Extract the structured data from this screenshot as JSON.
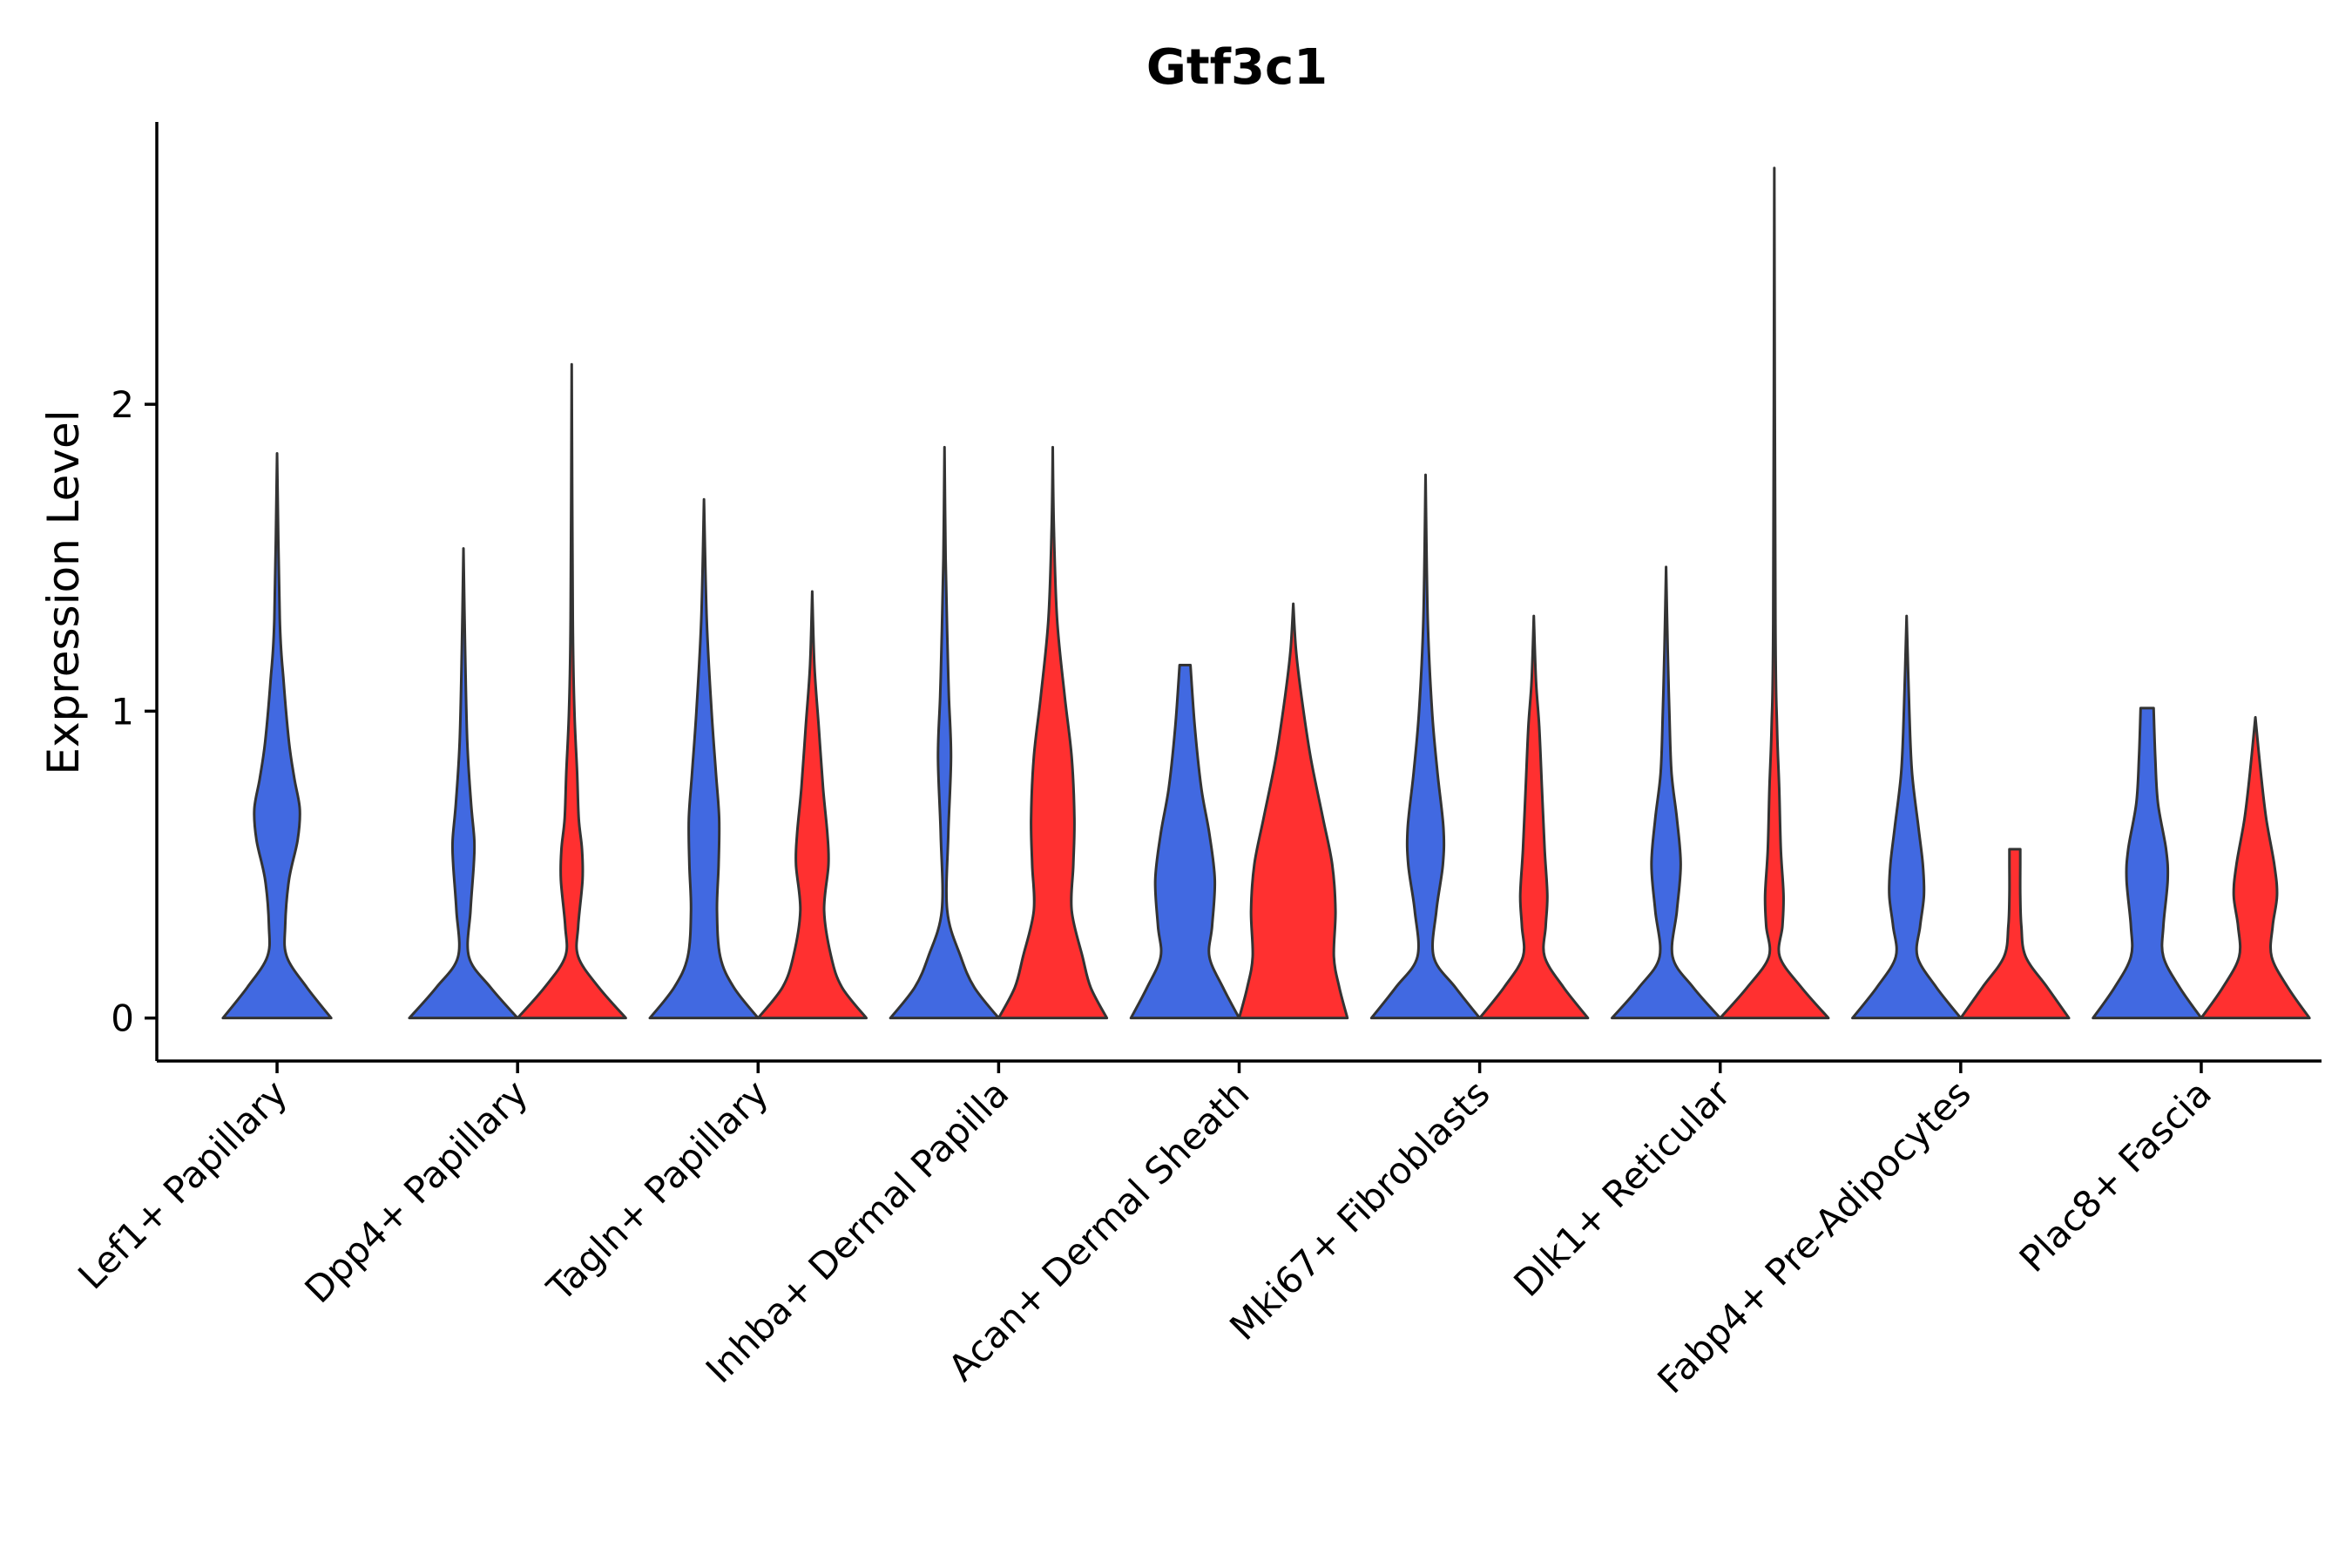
{
  "chart_data": {
    "type": "violin",
    "title": "Gtf3c1",
    "xlabel": "",
    "ylabel": "Expression Level",
    "ylim": [
      -0.14,
      2.92
    ],
    "yticks": [
      0,
      1,
      2
    ],
    "grid": false,
    "legend": "none",
    "group_colors": [
      "#4169E1",
      "#FF3030"
    ],
    "categories": [
      "Lef1+ Papillary",
      "Dpp4+ Papillary",
      "Tagln+ Papillary",
      "Inhba+ Dermal Papilla",
      "Acan+ Dermal Sheath",
      "Mki67+ Fibroblasts",
      "Dlk1+ Reticular",
      "Fabp4+ Pre-Adipocytes",
      "Plac8+ Fascia"
    ],
    "violins": [
      {
        "category": "Lef1+ Papillary",
        "group": 1,
        "max": 1.84,
        "profile": [
          [
            0,
            1.0
          ],
          [
            0.1,
            0.55
          ],
          [
            0.2,
            0.18
          ],
          [
            0.3,
            0.15
          ],
          [
            0.45,
            0.22
          ],
          [
            0.58,
            0.38
          ],
          [
            0.68,
            0.42
          ],
          [
            0.78,
            0.32
          ],
          [
            0.9,
            0.22
          ],
          [
            1.1,
            0.12
          ],
          [
            1.3,
            0.05
          ],
          [
            1.84,
            0.0
          ]
        ]
      },
      {
        "category": "Dpp4+ Papillary",
        "group": 1,
        "max": 1.53,
        "profile": [
          [
            0,
            1.0
          ],
          [
            0.1,
            0.5
          ],
          [
            0.2,
            0.1
          ],
          [
            0.35,
            0.13
          ],
          [
            0.5,
            0.19
          ],
          [
            0.58,
            0.2
          ],
          [
            0.7,
            0.14
          ],
          [
            0.9,
            0.07
          ],
          [
            1.2,
            0.03
          ],
          [
            1.53,
            0.0
          ]
        ]
      },
      {
        "category": "Dpp4+ Papillary",
        "group": 2,
        "max": 2.13,
        "profile": [
          [
            0,
            1.0
          ],
          [
            0.1,
            0.5
          ],
          [
            0.2,
            0.12
          ],
          [
            0.3,
            0.12
          ],
          [
            0.45,
            0.2
          ],
          [
            0.55,
            0.19
          ],
          [
            0.65,
            0.13
          ],
          [
            0.8,
            0.1
          ],
          [
            1.0,
            0.05
          ],
          [
            1.3,
            0.02
          ],
          [
            2.13,
            0.0
          ]
        ]
      },
      {
        "category": "Tagln+ Papillary",
        "group": 1,
        "max": 1.69,
        "profile": [
          [
            0,
            1.0
          ],
          [
            0.1,
            0.55
          ],
          [
            0.2,
            0.3
          ],
          [
            0.35,
            0.24
          ],
          [
            0.5,
            0.27
          ],
          [
            0.65,
            0.28
          ],
          [
            0.8,
            0.22
          ],
          [
            1.0,
            0.14
          ],
          [
            1.3,
            0.05
          ],
          [
            1.69,
            0.0
          ]
        ]
      },
      {
        "category": "Tagln+ Papillary",
        "group": 2,
        "max": 1.39,
        "profile": [
          [
            0,
            1.0
          ],
          [
            0.1,
            0.55
          ],
          [
            0.2,
            0.35
          ],
          [
            0.35,
            0.22
          ],
          [
            0.5,
            0.3
          ],
          [
            0.6,
            0.28
          ],
          [
            0.75,
            0.2
          ],
          [
            0.95,
            0.12
          ],
          [
            1.15,
            0.04
          ],
          [
            1.39,
            0.0
          ]
        ]
      },
      {
        "category": "Inhba+ Dermal Papilla",
        "group": 1,
        "max": 1.86,
        "profile": [
          [
            0,
            1.0
          ],
          [
            0.1,
            0.55
          ],
          [
            0.2,
            0.3
          ],
          [
            0.35,
            0.05
          ],
          [
            0.6,
            0.07
          ],
          [
            0.85,
            0.12
          ],
          [
            1.05,
            0.08
          ],
          [
            1.25,
            0.05
          ],
          [
            1.5,
            0.02
          ],
          [
            1.86,
            0.0
          ]
        ]
      },
      {
        "category": "Inhba+ Dermal Papilla",
        "group": 2,
        "max": 1.86,
        "profile": [
          [
            0,
            1.0
          ],
          [
            0.1,
            0.7
          ],
          [
            0.2,
            0.55
          ],
          [
            0.35,
            0.35
          ],
          [
            0.5,
            0.38
          ],
          [
            0.65,
            0.4
          ],
          [
            0.85,
            0.35
          ],
          [
            1.05,
            0.22
          ],
          [
            1.3,
            0.08
          ],
          [
            1.6,
            0.02
          ],
          [
            1.86,
            0.0
          ]
        ]
      },
      {
        "category": "Acan+ Dermal Sheath",
        "group": 1,
        "max": 1.15,
        "profile": [
          [
            0,
            1.0
          ],
          [
            0.1,
            0.7
          ],
          [
            0.2,
            0.45
          ],
          [
            0.3,
            0.5
          ],
          [
            0.45,
            0.55
          ],
          [
            0.6,
            0.45
          ],
          [
            0.75,
            0.3
          ],
          [
            0.95,
            0.18
          ],
          [
            1.15,
            0.1
          ]
        ]
      },
      {
        "category": "Acan+ Dermal Sheath",
        "group": 2,
        "max": 1.35,
        "profile": [
          [
            0,
            1.0
          ],
          [
            0.1,
            0.85
          ],
          [
            0.2,
            0.75
          ],
          [
            0.35,
            0.78
          ],
          [
            0.5,
            0.72
          ],
          [
            0.65,
            0.55
          ],
          [
            0.85,
            0.32
          ],
          [
            1.05,
            0.15
          ],
          [
            1.2,
            0.05
          ],
          [
            1.35,
            0.0
          ]
        ]
      },
      {
        "category": "Mki67+ Fibroblasts",
        "group": 1,
        "max": 1.77,
        "profile": [
          [
            0,
            1.0
          ],
          [
            0.1,
            0.55
          ],
          [
            0.2,
            0.15
          ],
          [
            0.35,
            0.2
          ],
          [
            0.5,
            0.32
          ],
          [
            0.62,
            0.33
          ],
          [
            0.8,
            0.22
          ],
          [
            1.0,
            0.12
          ],
          [
            1.3,
            0.04
          ],
          [
            1.77,
            0.0
          ]
        ]
      },
      {
        "category": "Mki67+ Fibroblasts",
        "group": 2,
        "max": 1.31,
        "profile": [
          [
            0,
            1.0
          ],
          [
            0.1,
            0.55
          ],
          [
            0.2,
            0.2
          ],
          [
            0.3,
            0.22
          ],
          [
            0.4,
            0.25
          ],
          [
            0.55,
            0.2
          ],
          [
            0.75,
            0.15
          ],
          [
            0.95,
            0.1
          ],
          [
            1.1,
            0.04
          ],
          [
            1.31,
            0.0
          ]
        ]
      },
      {
        "category": "Dlk1+ Reticular",
        "group": 1,
        "max": 1.47,
        "profile": [
          [
            0,
            1.0
          ],
          [
            0.1,
            0.5
          ],
          [
            0.2,
            0.12
          ],
          [
            0.35,
            0.2
          ],
          [
            0.5,
            0.27
          ],
          [
            0.65,
            0.2
          ],
          [
            0.8,
            0.1
          ],
          [
            1.0,
            0.06
          ],
          [
            1.2,
            0.03
          ],
          [
            1.47,
            0.0
          ]
        ]
      },
      {
        "category": "Dlk1+ Reticular",
        "group": 2,
        "max": 2.77,
        "profile": [
          [
            0,
            1.0
          ],
          [
            0.1,
            0.5
          ],
          [
            0.2,
            0.1
          ],
          [
            0.3,
            0.15
          ],
          [
            0.4,
            0.17
          ],
          [
            0.55,
            0.12
          ],
          [
            0.75,
            0.09
          ],
          [
            0.95,
            0.05
          ],
          [
            1.3,
            0.02
          ],
          [
            2.77,
            0.0
          ]
        ]
      },
      {
        "category": "Fabp4+ Pre-Adipocytes",
        "group": 1,
        "max": 1.31,
        "profile": [
          [
            0,
            1.0
          ],
          [
            0.1,
            0.55
          ],
          [
            0.2,
            0.2
          ],
          [
            0.3,
            0.25
          ],
          [
            0.4,
            0.32
          ],
          [
            0.5,
            0.3
          ],
          [
            0.62,
            0.22
          ],
          [
            0.8,
            0.1
          ],
          [
            1.0,
            0.05
          ],
          [
            1.31,
            0.0
          ]
        ]
      },
      {
        "category": "Fabp4+ Pre-Adipocytes",
        "group": 2,
        "max": 0.55,
        "profile": [
          [
            0,
            1.0
          ],
          [
            0.1,
            0.6
          ],
          [
            0.2,
            0.2
          ],
          [
            0.3,
            0.12
          ],
          [
            0.4,
            0.1
          ],
          [
            0.5,
            0.1
          ],
          [
            0.55,
            0.1
          ]
        ]
      },
      {
        "category": "Plac8+ Fascia",
        "group": 1,
        "max": 1.01,
        "profile": [
          [
            0,
            1.0
          ],
          [
            0.1,
            0.6
          ],
          [
            0.2,
            0.3
          ],
          [
            0.3,
            0.3
          ],
          [
            0.45,
            0.38
          ],
          [
            0.55,
            0.35
          ],
          [
            0.7,
            0.2
          ],
          [
            0.85,
            0.15
          ],
          [
            1.01,
            0.12
          ]
        ]
      },
      {
        "category": "Plac8+ Fascia",
        "group": 2,
        "max": 0.98,
        "profile": [
          [
            0,
            1.0
          ],
          [
            0.1,
            0.6
          ],
          [
            0.2,
            0.3
          ],
          [
            0.3,
            0.32
          ],
          [
            0.4,
            0.4
          ],
          [
            0.5,
            0.35
          ],
          [
            0.65,
            0.2
          ],
          [
            0.8,
            0.1
          ],
          [
            0.98,
            0.0
          ]
        ]
      }
    ]
  }
}
